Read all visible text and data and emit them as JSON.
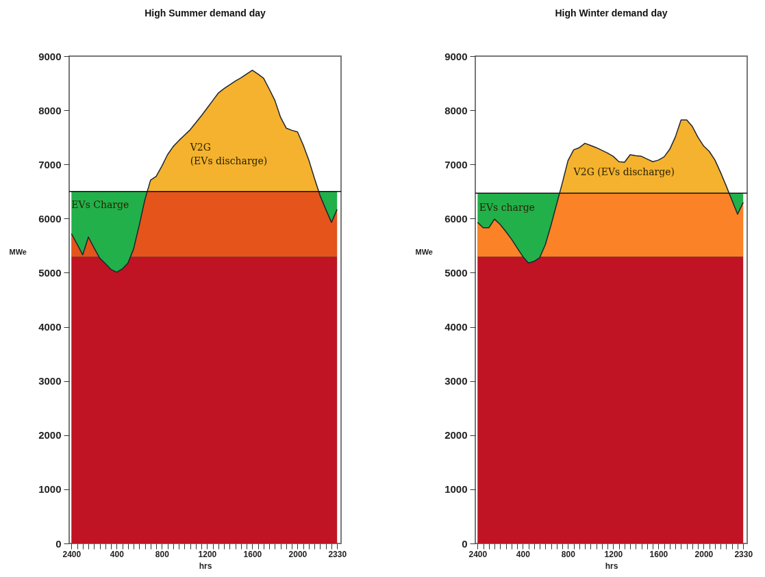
{
  "chart_data": [
    {
      "type": "area",
      "title": "High Summer demand day",
      "xlabel": "hrs",
      "ylabel": "MWe",
      "categories": [
        "2400",
        null,
        null,
        null,
        null,
        null,
        null,
        null,
        "400",
        null,
        null,
        null,
        null,
        null,
        null,
        null,
        "800",
        null,
        null,
        null,
        null,
        null,
        null,
        null,
        "1200",
        null,
        null,
        null,
        null,
        null,
        null,
        null,
        "1600",
        null,
        null,
        null,
        null,
        null,
        null,
        null,
        "2000",
        null,
        null,
        null,
        null,
        null,
        null,
        "2330"
      ],
      "series": [
        {
          "color": "#f5b22e",
          "values": [
            5720,
            5530,
            5330,
            5660,
            5460,
            5270,
            5170,
            5060,
            5010,
            5070,
            5180,
            5440,
            5880,
            6350,
            6710,
            6780,
            6970,
            7180,
            7330,
            7440,
            7540,
            7640,
            7770,
            7900,
            8040,
            8180,
            8320,
            8400,
            8470,
            8540,
            8600,
            8670,
            8740,
            8670,
            8590,
            8390,
            8180,
            7870,
            7670,
            7630,
            7600,
            7360,
            7080,
            6740,
            6420,
            6170,
            5930,
            6170
          ]
        }
      ],
      "bands": [
        {
          "axis": "y",
          "from": 0,
          "to": 6500,
          "color": "#22b04b"
        },
        {
          "axis": "y",
          "from": 0,
          "to": 5300,
          "color": "#c01425"
        },
        {
          "axis": "y",
          "from": 5300,
          "to": 6500,
          "color": "#e5541b"
        }
      ],
      "ref_lines": [
        {
          "axis": "y",
          "value": 6500,
          "color": "#111111"
        }
      ],
      "annotations": [
        "V2G\n(EVs discharge)",
        "EVs Charge"
      ],
      "ylim": [
        0,
        9000
      ],
      "yticks": [
        0,
        1000,
        2000,
        3000,
        4000,
        5000,
        6000,
        7000,
        8000,
        9000
      ]
    },
    {
      "type": "area",
      "title": "High Winter demand day",
      "xlabel": "hrs",
      "ylabel": "MWe",
      "categories": [
        "2400",
        null,
        null,
        null,
        null,
        null,
        null,
        null,
        "400",
        null,
        null,
        null,
        null,
        null,
        null,
        null,
        "800",
        null,
        null,
        null,
        null,
        null,
        null,
        null,
        "1200",
        null,
        null,
        null,
        null,
        null,
        null,
        null,
        "1600",
        null,
        null,
        null,
        null,
        null,
        null,
        null,
        "2000",
        null,
        null,
        null,
        null,
        null,
        null,
        "2330"
      ],
      "series": [
        {
          "color": "#f5b22e",
          "values": [
            5930,
            5830,
            5830,
            5990,
            5890,
            5760,
            5620,
            5460,
            5300,
            5180,
            5210,
            5280,
            5520,
            5880,
            6270,
            6660,
            7070,
            7270,
            7310,
            7390,
            7350,
            7310,
            7260,
            7210,
            7150,
            7050,
            7040,
            7180,
            7160,
            7150,
            7100,
            7050,
            7080,
            7140,
            7280,
            7510,
            7820,
            7820,
            7700,
            7500,
            7340,
            7240,
            7080,
            6850,
            6600,
            6340,
            6080,
            6300
          ]
        }
      ],
      "bands": [
        {
          "axis": "y",
          "from": 0,
          "to": 6470,
          "color": "#22b04b"
        },
        {
          "axis": "y",
          "from": 0,
          "to": 5300,
          "color": "#c01425"
        },
        {
          "axis": "y",
          "from": 5300,
          "to": 6470,
          "color": "#fc8227"
        }
      ],
      "ref_lines": [
        {
          "axis": "y",
          "value": 6470,
          "color": "#111111"
        }
      ],
      "annotations": [
        "V2G (EVs discharge)",
        "EVs charge"
      ],
      "ylim": [
        0,
        9000
      ],
      "yticks": [
        0,
        1000,
        2000,
        3000,
        4000,
        5000,
        6000,
        7000,
        8000,
        9000
      ]
    }
  ]
}
